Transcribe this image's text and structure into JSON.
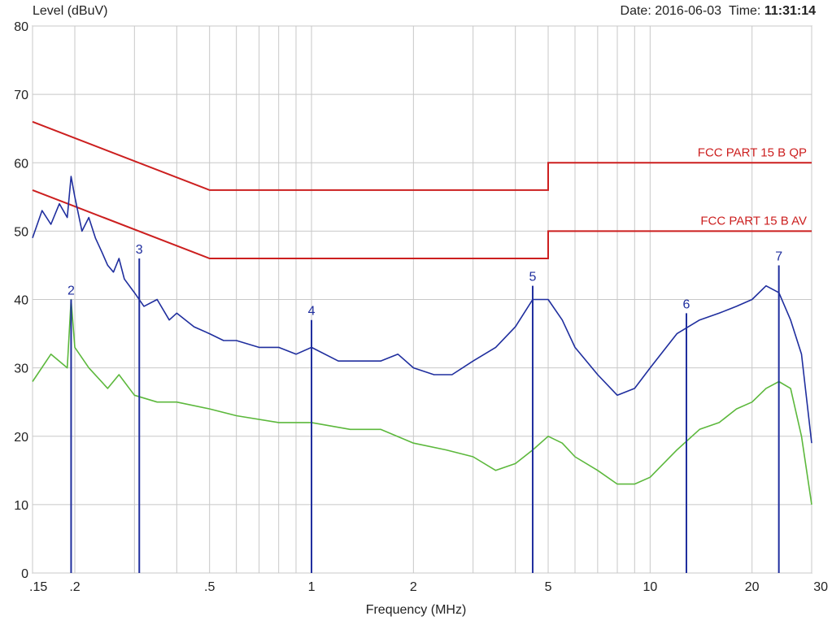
{
  "header": {
    "date_label": "Date:",
    "date_value": "2016-06-03",
    "time_label": "Time:",
    "time_value": "11:31:14"
  },
  "chart_data": {
    "type": "line",
    "title": "",
    "ylabel": "Level (dBuV)",
    "xlabel": "Frequency (MHz)",
    "x_scale": "log",
    "xlim": [
      0.15,
      30
    ],
    "ylim": [
      0,
      80
    ],
    "grid": true,
    "y_ticks": [
      0,
      10,
      20,
      30,
      40,
      50,
      60,
      70,
      80
    ],
    "x_ticks": [
      {
        "value": 0.15,
        "label": ".15"
      },
      {
        "value": 0.2,
        "label": ".2"
      },
      {
        "value": 0.5,
        "label": ".5"
      },
      {
        "value": 1,
        "label": "1"
      },
      {
        "value": 2,
        "label": "2"
      },
      {
        "value": 5,
        "label": "5"
      },
      {
        "value": 10,
        "label": "10"
      },
      {
        "value": 20,
        "label": "20"
      },
      {
        "value": 30,
        "label": "30"
      }
    ],
    "x_grid_values": [
      0.15,
      0.2,
      0.3,
      0.4,
      0.5,
      0.6,
      0.7,
      0.8,
      0.9,
      1,
      2,
      3,
      4,
      5,
      6,
      7,
      8,
      9,
      10,
      20,
      30
    ],
    "colors": {
      "limit": "#cc1f1f",
      "peak": "#1f2e9e",
      "average": "#5cb83c",
      "grid": "#c8c8c8"
    },
    "limits": [
      {
        "name": "FCC PART 15 B QP",
        "points": [
          [
            0.15,
            66
          ],
          [
            0.5,
            56
          ],
          [
            5,
            56
          ],
          [
            5,
            60
          ],
          [
            30,
            60
          ]
        ]
      },
      {
        "name": "FCC PART 15 B AV",
        "points": [
          [
            0.15,
            56
          ],
          [
            0.5,
            46
          ],
          [
            5,
            46
          ],
          [
            5,
            50
          ],
          [
            30,
            50
          ]
        ]
      }
    ],
    "series": [
      {
        "key": "peak",
        "points": [
          [
            0.15,
            49
          ],
          [
            0.16,
            53
          ],
          [
            0.17,
            51
          ],
          [
            0.18,
            54
          ],
          [
            0.19,
            52
          ],
          [
            0.195,
            58
          ],
          [
            0.2,
            55
          ],
          [
            0.21,
            50
          ],
          [
            0.22,
            52
          ],
          [
            0.23,
            49
          ],
          [
            0.24,
            47
          ],
          [
            0.25,
            45
          ],
          [
            0.26,
            44
          ],
          [
            0.27,
            46
          ],
          [
            0.28,
            43
          ],
          [
            0.3,
            41
          ],
          [
            0.32,
            39
          ],
          [
            0.35,
            40
          ],
          [
            0.38,
            37
          ],
          [
            0.4,
            38
          ],
          [
            0.45,
            36
          ],
          [
            0.5,
            35
          ],
          [
            0.55,
            34
          ],
          [
            0.6,
            34
          ],
          [
            0.7,
            33
          ],
          [
            0.8,
            33
          ],
          [
            0.9,
            32
          ],
          [
            1,
            33
          ],
          [
            1.2,
            31
          ],
          [
            1.4,
            31
          ],
          [
            1.6,
            31
          ],
          [
            1.8,
            32
          ],
          [
            2,
            30
          ],
          [
            2.3,
            29
          ],
          [
            2.6,
            29
          ],
          [
            3,
            31
          ],
          [
            3.5,
            33
          ],
          [
            4,
            36
          ],
          [
            4.5,
            40
          ],
          [
            5,
            40
          ],
          [
            5.5,
            37
          ],
          [
            6,
            33
          ],
          [
            7,
            29
          ],
          [
            8,
            26
          ],
          [
            9,
            27
          ],
          [
            10,
            30
          ],
          [
            12,
            35
          ],
          [
            14,
            37
          ],
          [
            16,
            38
          ],
          [
            18,
            39
          ],
          [
            20,
            40
          ],
          [
            22,
            42
          ],
          [
            24,
            41
          ],
          [
            26,
            37
          ],
          [
            28,
            32
          ],
          [
            30,
            19
          ]
        ]
      },
      {
        "key": "average",
        "points": [
          [
            0.15,
            28
          ],
          [
            0.17,
            32
          ],
          [
            0.19,
            30
          ],
          [
            0.195,
            40
          ],
          [
            0.2,
            33
          ],
          [
            0.22,
            30
          ],
          [
            0.25,
            27
          ],
          [
            0.27,
            29
          ],
          [
            0.3,
            26
          ],
          [
            0.35,
            25
          ],
          [
            0.4,
            25
          ],
          [
            0.5,
            24
          ],
          [
            0.6,
            23
          ],
          [
            0.8,
            22
          ],
          [
            1,
            22
          ],
          [
            1.3,
            21
          ],
          [
            1.6,
            21
          ],
          [
            2,
            19
          ],
          [
            2.5,
            18
          ],
          [
            3,
            17
          ],
          [
            3.5,
            15
          ],
          [
            4,
            16
          ],
          [
            4.5,
            18
          ],
          [
            5,
            20
          ],
          [
            5.5,
            19
          ],
          [
            6,
            17
          ],
          [
            7,
            15
          ],
          [
            8,
            13
          ],
          [
            9,
            13
          ],
          [
            10,
            14
          ],
          [
            12,
            18
          ],
          [
            14,
            21
          ],
          [
            16,
            22
          ],
          [
            18,
            24
          ],
          [
            20,
            25
          ],
          [
            22,
            27
          ],
          [
            24,
            28
          ],
          [
            26,
            27
          ],
          [
            28,
            20
          ],
          [
            30,
            10
          ]
        ]
      }
    ],
    "markers": [
      {
        "label": "2",
        "freq": 0.195,
        "level": 40
      },
      {
        "label": "3",
        "freq": 0.31,
        "level": 46
      },
      {
        "label": "4",
        "freq": 1.0,
        "level": 37
      },
      {
        "label": "5",
        "freq": 4.5,
        "level": 42
      },
      {
        "label": "6",
        "freq": 12.8,
        "level": 38
      },
      {
        "label": "7",
        "freq": 24.0,
        "level": 45
      }
    ]
  }
}
